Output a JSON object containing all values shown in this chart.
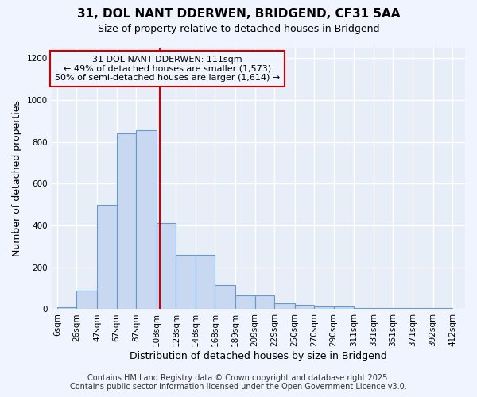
{
  "title1": "31, DOL NANT DDERWEN, BRIDGEND, CF31 5AA",
  "title2": "Size of property relative to detached houses in Bridgend",
  "xlabel": "Distribution of detached houses by size in Bridgend",
  "ylabel": "Number of detached properties",
  "bar_left_edges": [
    6,
    26,
    47,
    67,
    87,
    108,
    128,
    148,
    168,
    189,
    209,
    229,
    250,
    270,
    290,
    311,
    331,
    351,
    371,
    392
  ],
  "bar_widths": [
    20,
    21,
    20,
    20,
    21,
    20,
    20,
    20,
    21,
    20,
    20,
    21,
    20,
    20,
    21,
    20,
    20,
    20,
    21,
    20
  ],
  "bar_heights": [
    10,
    90,
    500,
    840,
    855,
    410,
    260,
    260,
    115,
    65,
    65,
    30,
    20,
    12,
    12,
    5,
    5,
    5,
    5,
    5
  ],
  "bar_color": "#c8d8f0",
  "bar_edge_color": "#6699cc",
  "property_line_x": 111,
  "property_line_color": "#cc0000",
  "ylim": [
    0,
    1250
  ],
  "xlim": [
    0,
    425
  ],
  "yticks": [
    0,
    200,
    400,
    600,
    800,
    1000,
    1200
  ],
  "xtick_labels": [
    "6sqm",
    "26sqm",
    "47sqm",
    "67sqm",
    "87sqm",
    "108sqm",
    "128sqm",
    "148sqm",
    "168sqm",
    "189sqm",
    "209sqm",
    "229sqm",
    "250sqm",
    "270sqm",
    "290sqm",
    "311sqm",
    "331sqm",
    "351sqm",
    "371sqm",
    "392sqm",
    "412sqm"
  ],
  "xtick_positions": [
    6,
    26,
    47,
    67,
    87,
    108,
    128,
    148,
    168,
    189,
    209,
    229,
    250,
    270,
    290,
    311,
    331,
    351,
    371,
    392,
    412
  ],
  "annotation_line1": "31 DOL NANT DDERWEN: 111sqm",
  "annotation_line2": "← 49% of detached houses are smaller (1,573)",
  "annotation_line3": "50% of semi-detached houses are larger (1,614) →",
  "footer1": "Contains HM Land Registry data © Crown copyright and database right 2025.",
  "footer2": "Contains public sector information licensed under the Open Government Licence v3.0.",
  "bg_color": "#f0f4ff",
  "plot_bg_color": "#e8eef8",
  "grid_color": "#ffffff",
  "title_fontsize": 11,
  "subtitle_fontsize": 9,
  "axis_label_fontsize": 9,
  "tick_fontsize": 7.5,
  "footer_fontsize": 7,
  "annotation_fontsize": 8
}
